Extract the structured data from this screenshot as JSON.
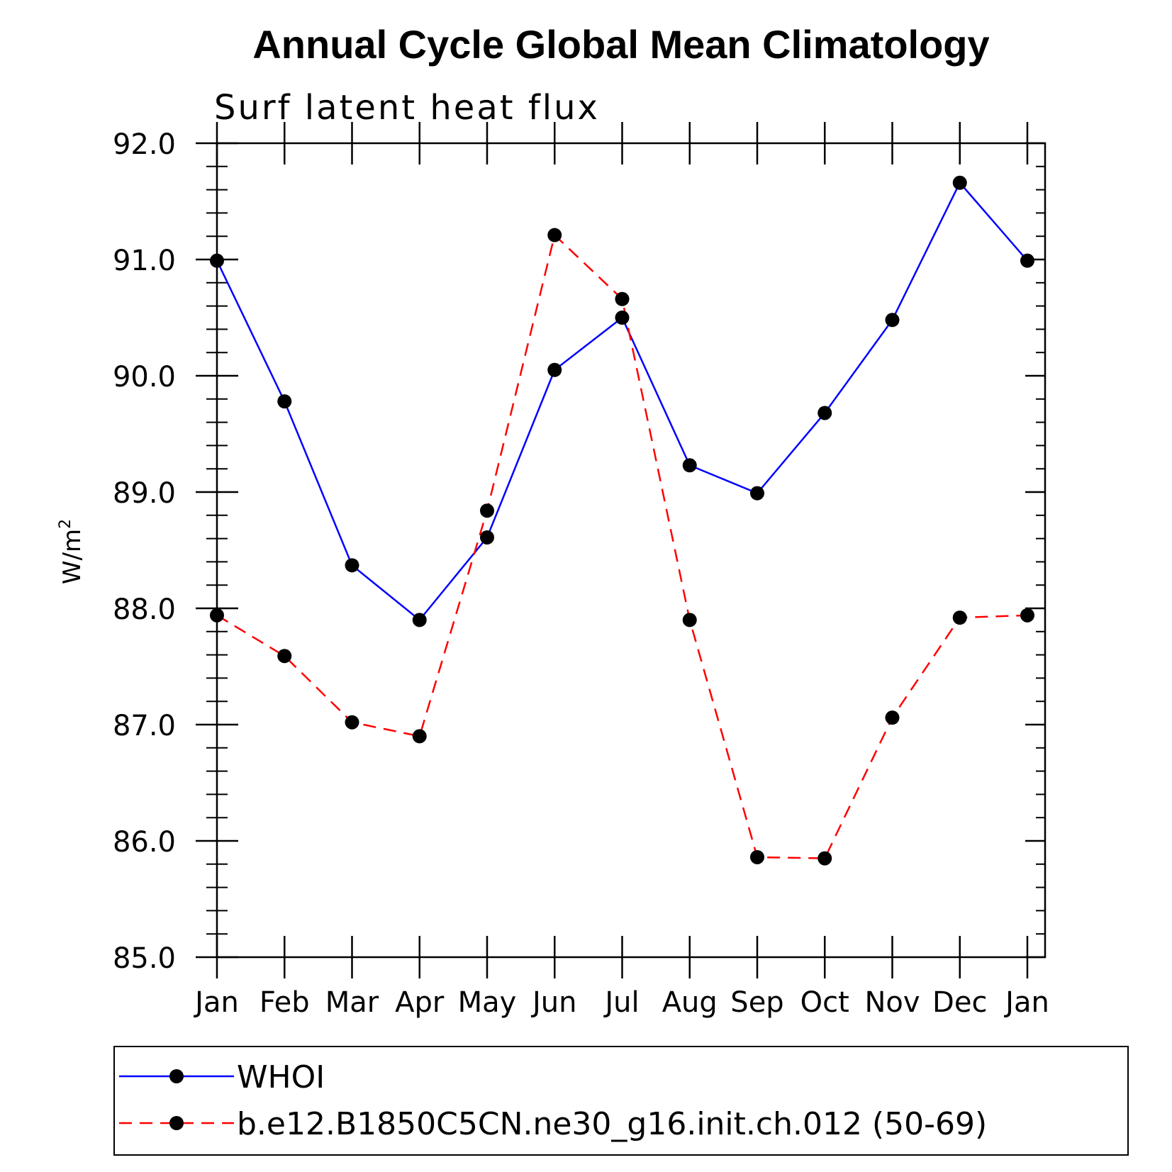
{
  "chart_data": {
    "type": "line",
    "title": "Annual Cycle Global Mean Climatology",
    "subtitle": "Surf latent heat flux",
    "ylabel": "W/m",
    "ylabel_sup": "2",
    "xlabel": "",
    "categories": [
      "Jan",
      "Feb",
      "Mar",
      "Apr",
      "May",
      "Jun",
      "Jul",
      "Aug",
      "Sep",
      "Oct",
      "Nov",
      "Dec",
      "Jan"
    ],
    "ylim": [
      85.0,
      92.0
    ],
    "yticks": [
      "85.0",
      "86.0",
      "87.0",
      "88.0",
      "89.0",
      "90.0",
      "91.0",
      "92.0"
    ],
    "ytick_values": [
      85,
      86,
      87,
      88,
      89,
      90,
      91,
      92
    ],
    "grid": false,
    "legend_position": "bottom",
    "series": [
      {
        "name": "WHOI",
        "color": "#0000ff",
        "style": "solid",
        "values": [
          90.99,
          89.78,
          88.37,
          87.9,
          88.61,
          90.05,
          90.5,
          89.23,
          88.99,
          89.68,
          90.48,
          91.66,
          90.99
        ]
      },
      {
        "name": "b.e12.B1850C5CN.ne30_g16.init.ch.012 (50-69)",
        "color": "#ff0000",
        "style": "dashed",
        "values": [
          87.94,
          87.59,
          87.02,
          86.9,
          88.84,
          91.21,
          90.66,
          87.9,
          85.86,
          85.85,
          87.06,
          87.92,
          87.94
        ]
      }
    ]
  }
}
